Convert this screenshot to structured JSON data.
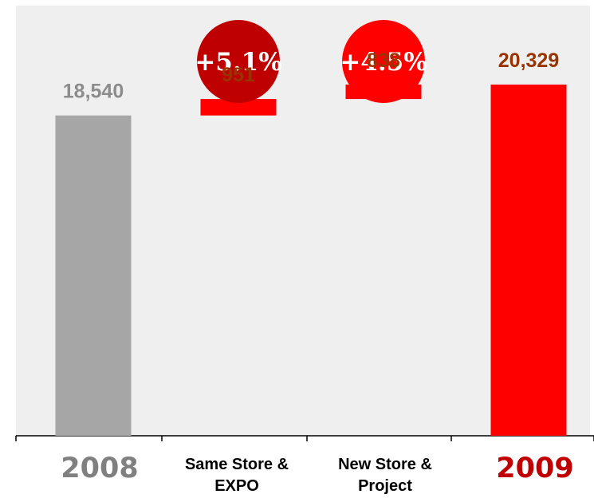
{
  "chart_data": {
    "type": "bar",
    "subtype": "waterfall",
    "categories": [
      "2008",
      "Same Store & EXPO",
      "New Store & Project",
      "2009"
    ],
    "values": [
      18540,
      951,
      838,
      20329
    ],
    "value_labels": [
      "18,540",
      "951",
      "838",
      "20,329"
    ],
    "category_lines": [
      [
        "2008"
      ],
      [
        "Same Store &",
        "EXPO"
      ],
      [
        "New Store &",
        "Project"
      ],
      [
        "2009"
      ]
    ],
    "badges": [
      {
        "category_index": 1,
        "text": "+5.1%",
        "color": "#bf0000"
      },
      {
        "category_index": 2,
        "text": "+4.5%",
        "color": "#ff0000"
      }
    ],
    "colors": {
      "start_bar": "#a6a6a6",
      "increment": "#ff0000",
      "end_bar": "#ff0000",
      "start_label": "#8c8c8c",
      "value_label": "#993300",
      "label_2008": "#808080",
      "label_2009": "#c00000"
    },
    "ylim": [
      0,
      24900
    ],
    "grid": false,
    "legend": "none"
  }
}
